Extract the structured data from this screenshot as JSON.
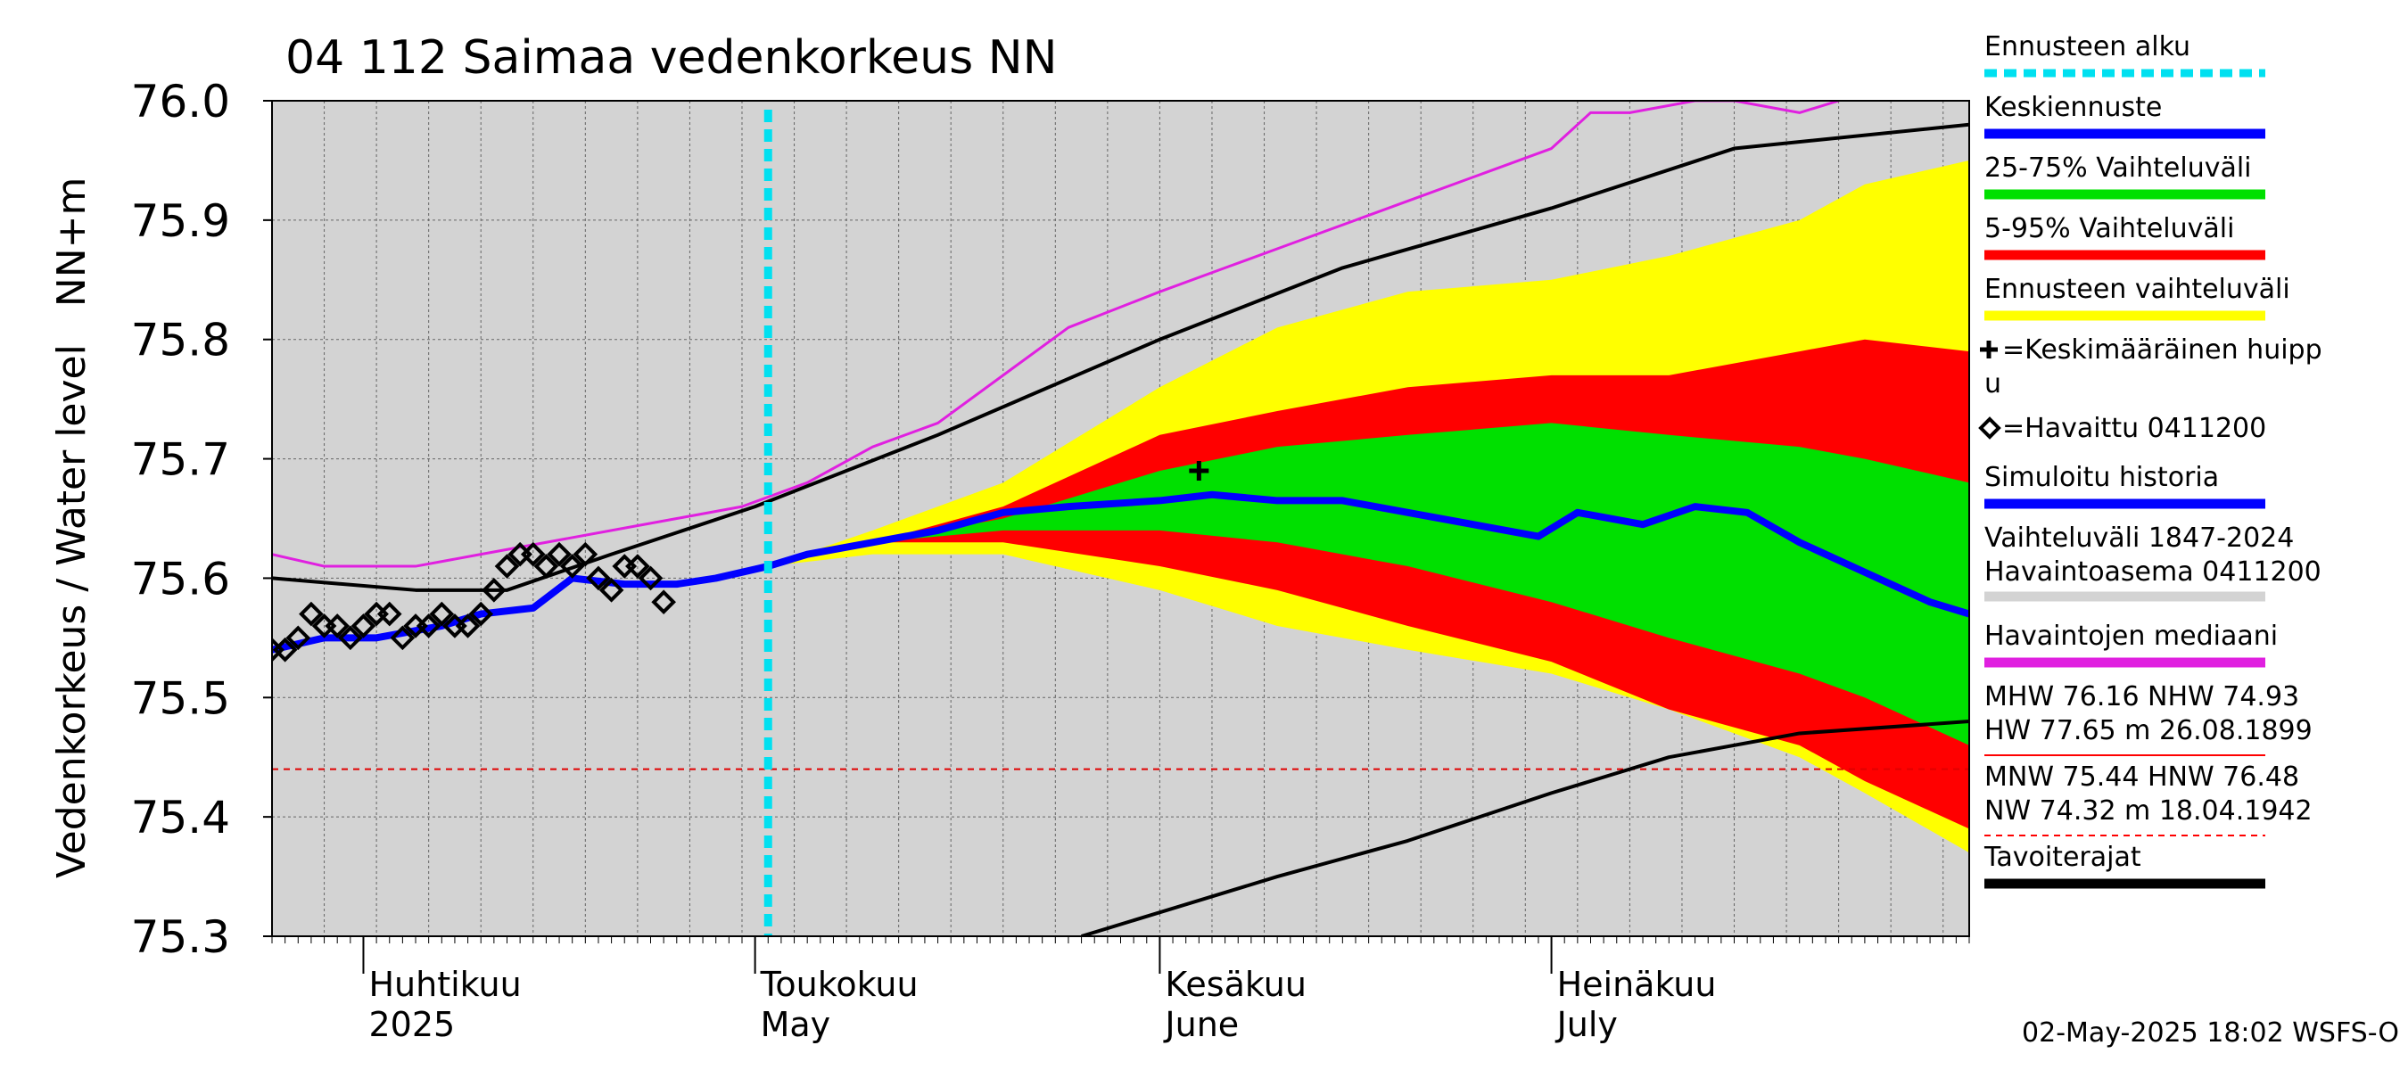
{
  "chart_data": {
    "type": "area",
    "title": "04 112 Saimaa vedenkorkeus NN",
    "ylabel": "Vedenkorkeus / Water level   NN+m",
    "ylim": [
      75.3,
      76.0
    ],
    "xlim": [
      "2025-03-25",
      "2025-08-02"
    ],
    "y_ticks": [
      "75.3",
      "75.4",
      "75.5",
      "75.6",
      "75.7",
      "75.8",
      "75.9",
      "76.0"
    ],
    "x_month_labels": [
      {
        "top": "Huhtikuu",
        "bottom": "2025",
        "date": "2025-04-01"
      },
      {
        "top": "Toukokuu",
        "bottom": "May",
        "date": "2025-05-01"
      },
      {
        "top": "Kesäkuu",
        "bottom": "June",
        "date": "2025-06-01"
      },
      {
        "top": "Heinäkuu",
        "bottom": "July",
        "date": "2025-07-01"
      }
    ],
    "grid": true,
    "legend_position": "right",
    "forecast_start": "2025-05-02",
    "reference_line": {
      "y": 75.44,
      "style": "dashed",
      "color": "#e00000"
    },
    "bands": {
      "yellow_upper": [
        [
          "2025-05-02",
          75.61
        ],
        [
          "2025-05-10",
          75.64
        ],
        [
          "2025-05-20",
          75.68
        ],
        [
          "2025-06-01",
          75.76
        ],
        [
          "2025-06-10",
          75.81
        ],
        [
          "2025-06-20",
          75.84
        ],
        [
          "2025-07-01",
          75.85
        ],
        [
          "2025-07-10",
          75.87
        ],
        [
          "2025-07-20",
          75.9
        ],
        [
          "2025-07-25",
          75.93
        ],
        [
          "2025-08-02",
          75.95
        ]
      ],
      "red_upper": [
        [
          "2025-05-02",
          75.61
        ],
        [
          "2025-05-10",
          75.63
        ],
        [
          "2025-05-20",
          75.66
        ],
        [
          "2025-06-01",
          75.72
        ],
        [
          "2025-06-10",
          75.74
        ],
        [
          "2025-06-20",
          75.76
        ],
        [
          "2025-07-01",
          75.77
        ],
        [
          "2025-07-10",
          75.77
        ],
        [
          "2025-07-20",
          75.79
        ],
        [
          "2025-07-25",
          75.8
        ],
        [
          "2025-08-02",
          75.79
        ]
      ],
      "green_upper": [
        [
          "2025-05-02",
          75.61
        ],
        [
          "2025-05-10",
          75.63
        ],
        [
          "2025-05-20",
          75.65
        ],
        [
          "2025-06-01",
          75.69
        ],
        [
          "2025-06-10",
          75.71
        ],
        [
          "2025-06-20",
          75.72
        ],
        [
          "2025-07-01",
          75.73
        ],
        [
          "2025-07-10",
          75.72
        ],
        [
          "2025-07-20",
          75.71
        ],
        [
          "2025-07-25",
          75.7
        ],
        [
          "2025-08-02",
          75.68
        ]
      ],
      "green_lower": [
        [
          "2025-05-02",
          75.61
        ],
        [
          "2025-05-10",
          75.63
        ],
        [
          "2025-05-20",
          75.64
        ],
        [
          "2025-06-01",
          75.64
        ],
        [
          "2025-06-10",
          75.63
        ],
        [
          "2025-06-20",
          75.61
        ],
        [
          "2025-07-01",
          75.58
        ],
        [
          "2025-07-10",
          75.55
        ],
        [
          "2025-07-20",
          75.52
        ],
        [
          "2025-07-25",
          75.5
        ],
        [
          "2025-08-02",
          75.46
        ]
      ],
      "red_lower": [
        [
          "2025-05-02",
          75.61
        ],
        [
          "2025-05-10",
          75.63
        ],
        [
          "2025-05-20",
          75.63
        ],
        [
          "2025-06-01",
          75.61
        ],
        [
          "2025-06-10",
          75.59
        ],
        [
          "2025-06-20",
          75.56
        ],
        [
          "2025-07-01",
          75.53
        ],
        [
          "2025-07-10",
          75.49
        ],
        [
          "2025-07-20",
          75.46
        ],
        [
          "2025-07-25",
          75.43
        ],
        [
          "2025-08-02",
          75.39
        ]
      ],
      "yellow_lower": [
        [
          "2025-05-02",
          75.61
        ],
        [
          "2025-05-10",
          75.62
        ],
        [
          "2025-05-20",
          75.62
        ],
        [
          "2025-06-01",
          75.59
        ],
        [
          "2025-06-10",
          75.56
        ],
        [
          "2025-06-20",
          75.54
        ],
        [
          "2025-07-01",
          75.52
        ],
        [
          "2025-07-10",
          75.49
        ],
        [
          "2025-07-20",
          75.45
        ],
        [
          "2025-07-25",
          75.42
        ],
        [
          "2025-08-02",
          75.37
        ]
      ]
    },
    "series": [
      {
        "name": "Havaintojen mediaani",
        "color": "#e020e0",
        "values": [
          [
            "2025-03-25",
            75.62
          ],
          [
            "2025-03-29",
            75.61
          ],
          [
            "2025-04-05",
            75.61
          ],
          [
            "2025-04-10",
            75.62
          ],
          [
            "2025-04-15",
            75.63
          ],
          [
            "2025-04-20",
            75.64
          ],
          [
            "2025-04-25",
            75.65
          ],
          [
            "2025-04-30",
            75.66
          ],
          [
            "2025-05-05",
            75.68
          ],
          [
            "2025-05-10",
            75.71
          ],
          [
            "2025-05-15",
            75.73
          ],
          [
            "2025-05-20",
            75.77
          ],
          [
            "2025-05-25",
            75.81
          ],
          [
            "2025-06-01",
            75.84
          ],
          [
            "2025-06-06",
            75.86
          ],
          [
            "2025-06-11",
            75.88
          ],
          [
            "2025-06-16",
            75.9
          ],
          [
            "2025-06-21",
            75.92
          ],
          [
            "2025-06-26",
            75.94
          ],
          [
            "2025-07-01",
            75.96
          ],
          [
            "2025-07-04",
            75.99
          ],
          [
            "2025-07-07",
            75.99
          ],
          [
            "2025-07-12",
            76.0
          ],
          [
            "2025-07-15",
            76.0
          ],
          [
            "2025-07-20",
            75.99
          ],
          [
            "2025-07-23",
            76.0
          ]
        ]
      },
      {
        "name": "Tavoiterajat",
        "color": "#000000",
        "values": [
          [
            "2025-03-25",
            75.6
          ],
          [
            "2025-04-05",
            75.59
          ],
          [
            "2025-04-12",
            75.59
          ],
          [
            "2025-04-20",
            75.62
          ],
          [
            "2025-05-01",
            75.66
          ],
          [
            "2025-05-15",
            75.72
          ],
          [
            "2025-06-01",
            75.8
          ],
          [
            "2025-06-15",
            75.86
          ],
          [
            "2025-07-01",
            75.91
          ],
          [
            "2025-07-15",
            75.96
          ],
          [
            "2025-08-02",
            75.98
          ]
        ]
      },
      {
        "name": "Tavoiterajat",
        "color": "#000000",
        "values": [
          [
            "2025-05-26",
            75.3
          ],
          [
            "2025-06-10",
            75.35
          ],
          [
            "2025-06-20",
            75.38
          ],
          [
            "2025-07-01",
            75.42
          ],
          [
            "2025-07-10",
            75.45
          ],
          [
            "2025-07-20",
            75.47
          ],
          [
            "2025-08-02",
            75.48
          ]
        ]
      },
      {
        "name": "Keskiennuste",
        "color": "#0000ff",
        "values": [
          [
            "2025-05-02",
            75.61
          ],
          [
            "2025-05-05",
            75.62
          ],
          [
            "2025-05-10",
            75.63
          ],
          [
            "2025-05-15",
            75.64
          ],
          [
            "2025-05-20",
            75.655
          ],
          [
            "2025-05-25",
            75.66
          ],
          [
            "2025-06-01",
            75.665
          ],
          [
            "2025-06-05",
            75.67
          ],
          [
            "2025-06-10",
            75.665
          ],
          [
            "2025-06-15",
            75.665
          ],
          [
            "2025-06-20",
            75.655
          ],
          [
            "2025-06-25",
            75.645
          ],
          [
            "2025-06-30",
            75.635
          ],
          [
            "2025-07-03",
            75.655
          ],
          [
            "2025-07-08",
            75.645
          ],
          [
            "2025-07-12",
            75.66
          ],
          [
            "2025-07-16",
            75.655
          ],
          [
            "2025-07-20",
            75.63
          ],
          [
            "2025-07-25",
            75.605
          ],
          [
            "2025-07-30",
            75.58
          ],
          [
            "2025-08-02",
            75.57
          ]
        ]
      },
      {
        "name": "Simuloitu historia",
        "color": "#0000ff",
        "values": [
          [
            "2025-03-25",
            75.54
          ],
          [
            "2025-03-29",
            75.55
          ],
          [
            "2025-04-02",
            75.55
          ],
          [
            "2025-04-07",
            75.56
          ],
          [
            "2025-04-10",
            75.57
          ],
          [
            "2025-04-14",
            75.575
          ],
          [
            "2025-04-17",
            75.6
          ],
          [
            "2025-04-21",
            75.595
          ],
          [
            "2025-04-25",
            75.595
          ],
          [
            "2025-04-28",
            75.6
          ],
          [
            "2025-05-02",
            75.61
          ]
        ]
      }
    ],
    "observed": {
      "name": "=Havaittu 0411200",
      "values": [
        [
          "2025-03-25",
          75.54
        ],
        [
          "2025-03-26",
          75.54
        ],
        [
          "2025-03-27",
          75.55
        ],
        [
          "2025-03-28",
          75.57
        ],
        [
          "2025-03-29",
          75.56
        ],
        [
          "2025-03-30",
          75.56
        ],
        [
          "2025-03-31",
          75.55
        ],
        [
          "2025-04-01",
          75.56
        ],
        [
          "2025-04-02",
          75.57
        ],
        [
          "2025-04-03",
          75.57
        ],
        [
          "2025-04-04",
          75.55
        ],
        [
          "2025-04-05",
          75.56
        ],
        [
          "2025-04-06",
          75.56
        ],
        [
          "2025-04-07",
          75.57
        ],
        [
          "2025-04-08",
          75.56
        ],
        [
          "2025-04-09",
          75.56
        ],
        [
          "2025-04-10",
          75.57
        ],
        [
          "2025-04-11",
          75.59
        ],
        [
          "2025-04-12",
          75.61
        ],
        [
          "2025-04-13",
          75.62
        ],
        [
          "2025-04-14",
          75.62
        ],
        [
          "2025-04-15",
          75.61
        ],
        [
          "2025-04-16",
          75.62
        ],
        [
          "2025-04-17",
          75.61
        ],
        [
          "2025-04-18",
          75.62
        ],
        [
          "2025-04-19",
          75.6
        ],
        [
          "2025-04-20",
          75.59
        ],
        [
          "2025-04-21",
          75.61
        ],
        [
          "2025-04-22",
          75.61
        ],
        [
          "2025-04-23",
          75.6
        ],
        [
          "2025-04-24",
          75.58
        ]
      ]
    },
    "mean_peak": {
      "name": "=Keskimääräinen huipp u",
      "x": "2025-06-04",
      "y": 75.69
    },
    "legend": [
      {
        "label": "Ennusteen alku",
        "style": "dashed",
        "color": "#00e0f0"
      },
      {
        "label": "Keskiennuste",
        "style": "line",
        "color": "#0000ff"
      },
      {
        "label": "25-75% Vaihteluväli",
        "style": "line",
        "color": "#00e000"
      },
      {
        "label": "5-95% Vaihteluväli",
        "style": "line",
        "color": "#ff0000"
      },
      {
        "label": "Ennusteen vaihteluväli",
        "style": "line",
        "color": "#ffff00"
      },
      {
        "label": "=Keskimääräinen huipp",
        "label2": "u",
        "style": "plus",
        "color": "#000000"
      },
      {
        "label": "=Havaittu 0411200",
        "style": "diamond",
        "color": "#000000"
      },
      {
        "label": "Simuloitu historia",
        "style": "line",
        "color": "#0000ff"
      },
      {
        "label": "Vaihteluväli 1847-2024",
        "label2": " Havaintoasema 0411200",
        "style": "line",
        "color": "#d3d3d3"
      },
      {
        "label": "Havaintojen mediaani",
        "style": "line",
        "color": "#e020e0"
      },
      {
        "label": "MHW  76.16 NHW  74.93",
        "label2": "HW  77.65 m 26.08.1899",
        "style": "thin",
        "color": "#ff0000"
      },
      {
        "label": "MNW  75.44 HNW  76.48",
        "label2": "NW  74.32 m 18.04.1942",
        "style": "dashed-thin",
        "color": "#ff0000"
      },
      {
        "label": "Tavoiterajat",
        "style": "line",
        "color": "#000000"
      }
    ],
    "footer": "02-May-2025 18:02 WSFS-O"
  }
}
